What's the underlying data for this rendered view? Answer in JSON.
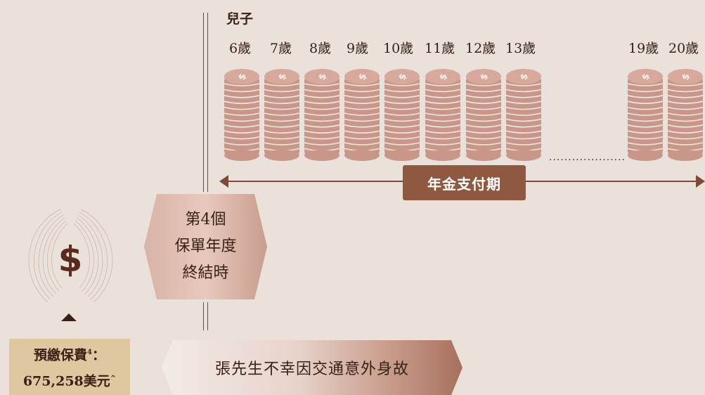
{
  "beneficiary_label": "兒子",
  "ages": [
    "6歲",
    "7歲",
    "8歲",
    "9歲",
    "10歲",
    "11歲",
    "12歲",
    "13歲",
    "19歲",
    "20歲"
  ],
  "ellipsis": "....................",
  "coin_icon": "coin-stack-icon",
  "annuity_period_label": "年金支付期",
  "policy_year_lines": [
    "第4個",
    "保單年度",
    "終結時"
  ],
  "premium": {
    "line1_text": "預繳保費",
    "line1_sup": "4",
    "line1_suffix": "：",
    "line2_text": "675,258美元",
    "line2_sup": "^"
  },
  "event_text": "張先生不幸因交通意外身故",
  "colors": {
    "background": "#e9e1da",
    "coin": "#c9978a",
    "accent": "#8f5841",
    "premium_box": "#dfc7a0",
    "text": "#3a2118"
  }
}
